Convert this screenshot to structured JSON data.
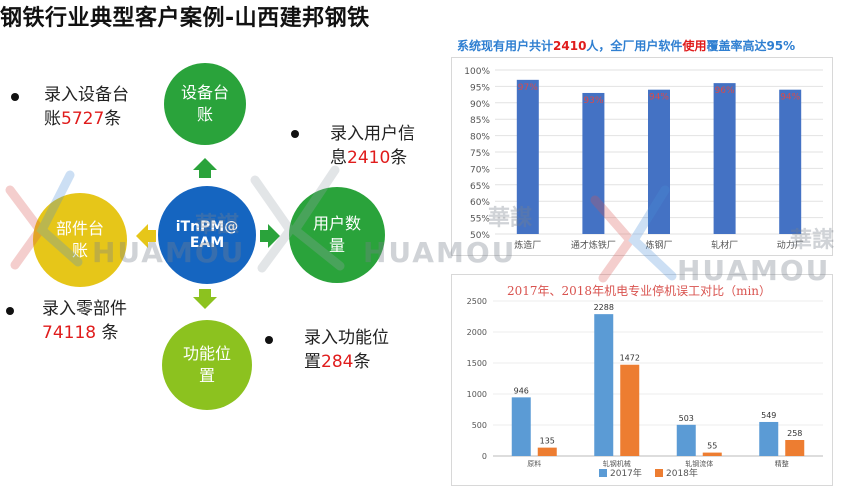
{
  "title": "钢铁行业典型客户案例-山西建邦钢铁",
  "diagram": {
    "center": {
      "line1": "iTnPM@",
      "line2": "EAM"
    },
    "top": {
      "line1": "设备台",
      "line2": "账"
    },
    "left": {
      "line1": "部件台",
      "line2": "账"
    },
    "right": {
      "line1": "用户数",
      "line2": "量"
    },
    "bottom": {
      "line1": "功能位",
      "line2": "置"
    }
  },
  "annotations": {
    "equipment": {
      "prefix": "录入设备台",
      "line2_prefix": "账",
      "value": "5727",
      "suffix": "条"
    },
    "users": {
      "prefix": "录入用户信",
      "line2_prefix": "息",
      "value": "2410",
      "suffix": "条"
    },
    "parts": {
      "prefix": "录入零部件",
      "value": "74118",
      "suffix": " 条"
    },
    "functions": {
      "prefix": "录入功能位",
      "line2_prefix": "置",
      "value": "284",
      "suffix": "条"
    }
  },
  "chart_header": {
    "part1": "系统现有用户共计",
    "value1": "2410",
    "part2": "人，全厂用户软件",
    "highlight": "使用",
    "part3": "覆盖率高达95%"
  },
  "watermark": {
    "latin": "HUAMOU",
    "cn": "華謀"
  },
  "chart_data": [
    {
      "type": "bar",
      "categories": [
        "炼造厂",
        "通才炼铁厂",
        "炼钢厂",
        "轧材厂",
        "动力厂"
      ],
      "values": [
        97,
        93,
        94,
        96,
        94
      ],
      "data_labels": [
        "97%",
        "93%",
        "94%",
        "96%",
        "94%"
      ],
      "ylim": [
        50,
        100
      ],
      "yticks": [
        "50%",
        "55%",
        "60%",
        "65%",
        "70%",
        "75%",
        "80%",
        "85%",
        "90%",
        "95%",
        "100%"
      ],
      "color": "#4472c4",
      "label_color": "#d94b4b",
      "grid": true
    },
    {
      "type": "bar",
      "title": "2017年、2018年机电专业停机误工对比（min）",
      "categories": [
        "原料",
        "轧钢机械",
        "轧钢流体",
        "精整"
      ],
      "series": [
        {
          "name": "2017年",
          "values": [
            946,
            2288,
            503,
            549
          ],
          "color": "#5b9bd5"
        },
        {
          "name": "2018年",
          "values": [
            135,
            1472,
            55,
            258
          ],
          "color": "#ed7d31"
        }
      ],
      "ylim": [
        0,
        2500
      ],
      "yticks": [
        "0",
        "500",
        "1000",
        "1500",
        "2000",
        "2500"
      ],
      "legend": "bottom"
    }
  ]
}
